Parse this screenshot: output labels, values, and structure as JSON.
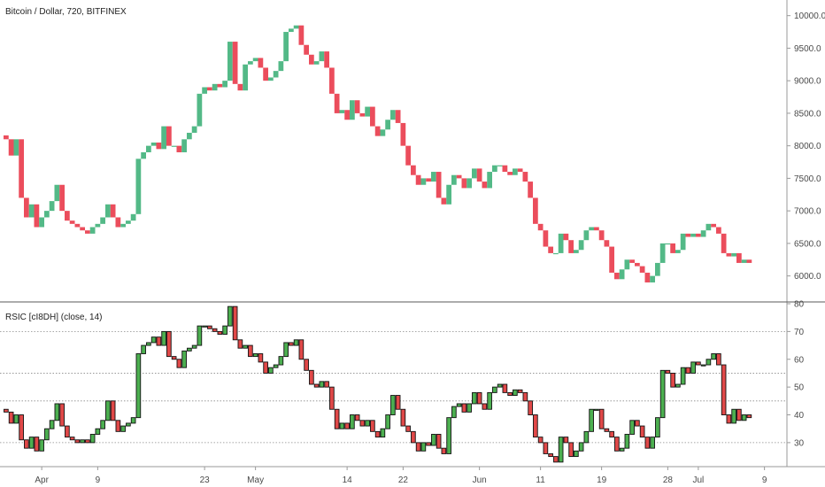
{
  "chart_data": {
    "type": "ohlc_with_indicator",
    "price_panel": {
      "title": "Bitcoin / Dollar, 720, BITFINEX",
      "ylim": [
        5750,
        10050
      ],
      "y_ticks": [
        "6000.0",
        "6500.0",
        "7000.0",
        "7500.0",
        "8000.0",
        "8500.0",
        "9000.0",
        "9500.0",
        "10000.0"
      ],
      "up_color": "#53b987",
      "down_color": "#eb4d5c",
      "close": [
        8100,
        7850,
        8100,
        7200,
        6900,
        7100,
        6750,
        6900,
        7000,
        7150,
        7400,
        7000,
        6850,
        6800,
        6750,
        6700,
        6650,
        6750,
        6800,
        6900,
        7100,
        6900,
        6750,
        6800,
        6850,
        6950,
        7800,
        7900,
        8000,
        8050,
        7950,
        8300,
        8000,
        8000,
        7900,
        8100,
        8200,
        8300,
        8800,
        8900,
        8850,
        8950,
        8900,
        9000,
        9600,
        8950,
        8850,
        9250,
        9300,
        9350,
        9200,
        9000,
        9050,
        9150,
        9300,
        9750,
        9800,
        9850,
        9550,
        9400,
        9250,
        9300,
        9450,
        9200,
        8800,
        8500,
        8550,
        8400,
        8700,
        8500,
        8450,
        8600,
        8300,
        8150,
        8250,
        8400,
        8550,
        8350,
        8000,
        7700,
        7550,
        7400,
        7500,
        7450,
        7600,
        7200,
        7100,
        7400,
        7550,
        7500,
        7350,
        7500,
        7650,
        7450,
        7350,
        7600,
        7700,
        7700,
        7600,
        7550,
        7650,
        7600,
        7450,
        7200,
        6800,
        6700,
        6450,
        6350,
        6350,
        6650,
        6550,
        6350,
        6400,
        6550,
        6700,
        6750,
        6700,
        6550,
        6450,
        6050,
        5950,
        6100,
        6250,
        6200,
        6150,
        6050,
        5900,
        6000,
        6200,
        6500,
        6500,
        6350,
        6400,
        6650,
        6600,
        6650,
        6600,
        6700,
        6800,
        6750,
        6650,
        6350,
        6300,
        6350,
        6200,
        6250,
        6200
      ]
    },
    "rsi_panel": {
      "title": "RSIC [cI8DH] (close, 14)",
      "ylim": [
        22,
        80
      ],
      "y_ticks": [
        "30",
        "40",
        "50",
        "60",
        "70",
        "80"
      ],
      "levels": [
        30,
        45,
        55,
        70
      ],
      "up_color": "#4caf50",
      "down_color": "#e04848",
      "values": [
        41,
        37,
        40,
        31,
        28,
        32,
        27,
        31,
        35,
        38,
        44,
        36,
        32,
        31,
        30,
        31,
        30,
        33,
        35,
        38,
        45,
        38,
        34,
        36,
        37,
        39,
        62,
        65,
        66,
        68,
        65,
        70,
        61,
        60,
        57,
        63,
        64,
        65,
        72,
        72,
        71,
        70,
        69,
        72,
        79,
        67,
        64,
        65,
        61,
        62,
        59,
        55,
        57,
        58,
        61,
        66,
        65,
        67,
        60,
        56,
        51,
        50,
        52,
        50,
        42,
        35,
        37,
        35,
        40,
        38,
        36,
        38,
        34,
        32,
        35,
        40,
        47,
        42,
        36,
        34,
        30,
        27,
        30,
        29,
        33,
        28,
        26,
        39,
        43,
        44,
        41,
        44,
        48,
        44,
        42,
        48,
        50,
        51,
        48,
        47,
        49,
        48,
        45,
        40,
        32,
        30,
        26,
        25,
        23,
        32,
        30,
        25,
        27,
        30,
        34,
        42,
        42,
        35,
        34,
        32,
        27,
        28,
        33,
        38,
        36,
        32,
        28,
        32,
        39,
        56,
        55,
        50,
        51,
        57,
        55,
        59,
        58,
        58,
        60,
        62,
        58,
        40,
        37,
        42,
        38,
        40,
        39
      ]
    },
    "x_axis": {
      "labels": [
        {
          "text": "Apr",
          "at_bar": 7
        },
        {
          "text": "9",
          "at_bar": 18
        },
        {
          "text": "23",
          "at_bar": 39
        },
        {
          "text": "May",
          "at_bar": 49
        },
        {
          "text": "14",
          "at_bar": 67
        },
        {
          "text": "22",
          "at_bar": 78
        },
        {
          "text": "Jun",
          "at_bar": 93
        },
        {
          "text": "11",
          "at_bar": 105
        },
        {
          "text": "19",
          "at_bar": 117
        },
        {
          "text": "28",
          "at_bar": 130
        },
        {
          "text": "Jul",
          "at_bar": 136
        },
        {
          "text": "9",
          "at_bar": 149
        }
      ]
    }
  }
}
